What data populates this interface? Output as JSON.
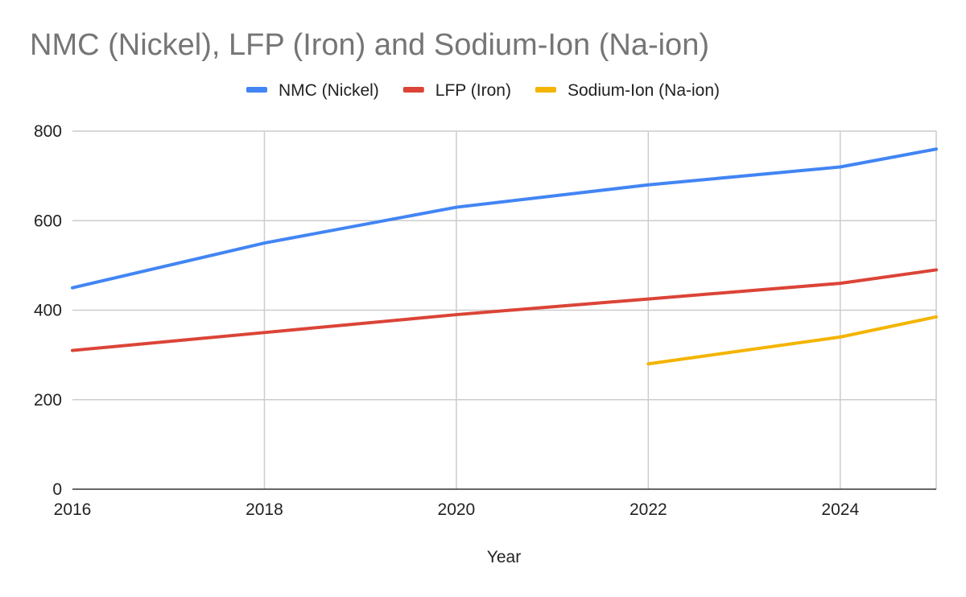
{
  "chart_data": {
    "type": "line",
    "title": "NMC (Nickel), LFP (Iron) and Sodium-Ion (Na-ion)",
    "xlabel": "Year",
    "ylabel": "",
    "xlim": [
      2016,
      2025
    ],
    "ylim": [
      0,
      800
    ],
    "x_ticks": [
      2016,
      2018,
      2020,
      2022,
      2024
    ],
    "y_ticks": [
      0,
      200,
      400,
      600,
      800
    ],
    "grid": true,
    "legend_position": "top",
    "series": [
      {
        "name": "NMC (Nickel)",
        "color": "#4285f4",
        "points": [
          {
            "x": 2016,
            "y": 450
          },
          {
            "x": 2018,
            "y": 550
          },
          {
            "x": 2020,
            "y": 630
          },
          {
            "x": 2022,
            "y": 680
          },
          {
            "x": 2024,
            "y": 720
          },
          {
            "x": 2025,
            "y": 760
          }
        ]
      },
      {
        "name": "LFP (Iron)",
        "color": "#db4437",
        "points": [
          {
            "x": 2016,
            "y": 310
          },
          {
            "x": 2018,
            "y": 350
          },
          {
            "x": 2020,
            "y": 390
          },
          {
            "x": 2022,
            "y": 425
          },
          {
            "x": 2024,
            "y": 460
          },
          {
            "x": 2025,
            "y": 490
          }
        ]
      },
      {
        "name": "Sodium-Ion (Na-ion)",
        "color": "#f4b400",
        "points": [
          {
            "x": 2022,
            "y": 280
          },
          {
            "x": 2024,
            "y": 340
          },
          {
            "x": 2025,
            "y": 385
          }
        ]
      }
    ]
  }
}
